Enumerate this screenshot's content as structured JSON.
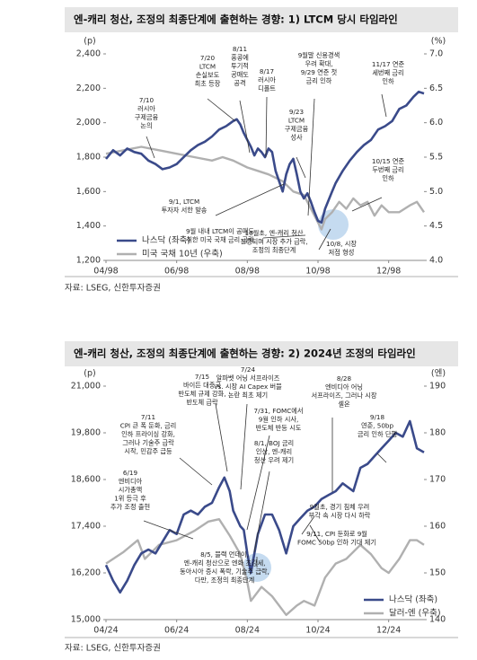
{
  "chart_data": [
    {
      "type": "line",
      "title": "엔-캐리 청산, 조정의 최종단계에 출현하는 경향: 1) LTCM 당시 타임라인",
      "y_unit": "(p)",
      "y2_unit": "(%)",
      "source": "자료: LSEG, 신한투자증권",
      "xlim": [
        0,
        9.0
      ],
      "xticks": [
        {
          "value": 0,
          "label": "04/98"
        },
        {
          "value": 2,
          "label": "06/98"
        },
        {
          "value": 4,
          "label": "08/98"
        },
        {
          "value": 6,
          "label": "10/98"
        },
        {
          "value": 8,
          "label": "12/98"
        }
      ],
      "ylim": [
        1200,
        2400
      ],
      "yticks": [
        {
          "value": 1200,
          "label": "1,200"
        },
        {
          "value": 1400,
          "label": "1,400"
        },
        {
          "value": 1600,
          "label": "1,600"
        },
        {
          "value": 1800,
          "label": "1,800"
        },
        {
          "value": 2000,
          "label": "2,000"
        },
        {
          "value": 2200,
          "label": "2,200"
        },
        {
          "value": 2400,
          "label": "2,400"
        }
      ],
      "y2lim": [
        4.0,
        7.0
      ],
      "y2ticks": [
        {
          "value": 4,
          "label": "4.0"
        },
        {
          "value": 4.5,
          "label": "4.5"
        },
        {
          "value": 5,
          "label": "5.0"
        },
        {
          "value": 5.5,
          "label": "5.5"
        },
        {
          "value": 6,
          "label": "6.0"
        },
        {
          "value": 6.5,
          "label": "6.5"
        },
        {
          "value": 7,
          "label": "7.0"
        }
      ],
      "series": [
        {
          "name": "나스닥 (좌축)",
          "color": "#3a4a8a",
          "x": [
            0,
            0.2,
            0.4,
            0.6,
            0.8,
            1.0,
            1.2,
            1.4,
            1.6,
            1.8,
            2.0,
            2.2,
            2.4,
            2.6,
            2.8,
            3.0,
            3.2,
            3.4,
            3.6,
            3.7,
            3.8,
            3.9,
            4.0,
            4.1,
            4.2,
            4.3,
            4.4,
            4.5,
            4.6,
            4.7,
            4.8,
            4.9,
            5.0,
            5.1,
            5.2,
            5.3,
            5.4,
            5.5,
            5.6,
            5.7,
            5.8,
            5.9,
            6.0,
            6.1,
            6.2,
            6.3,
            6.4,
            6.5,
            6.7,
            6.9,
            7.1,
            7.3,
            7.5,
            7.7,
            7.9,
            8.1,
            8.3,
            8.5,
            8.7,
            8.85,
            9.0
          ],
          "values": [
            1790,
            1840,
            1810,
            1850,
            1830,
            1820,
            1780,
            1760,
            1730,
            1740,
            1760,
            1800,
            1840,
            1870,
            1890,
            1920,
            1960,
            1980,
            2010,
            2020,
            1990,
            1940,
            1900,
            1860,
            1810,
            1850,
            1830,
            1800,
            1850,
            1830,
            1720,
            1660,
            1600,
            1700,
            1760,
            1790,
            1700,
            1600,
            1560,
            1590,
            1540,
            1480,
            1430,
            1420,
            1500,
            1550,
            1600,
            1650,
            1720,
            1780,
            1830,
            1870,
            1900,
            1960,
            1980,
            2010,
            2080,
            2100,
            2150,
            2180,
            2170
          ]
        },
        {
          "name": "미국 국채 10년 (우축)",
          "color": "#b0b0b0",
          "axis": "y2",
          "x": [
            0,
            0.5,
            1,
            1.5,
            2,
            2.5,
            3,
            3.3,
            3.6,
            4.0,
            4.3,
            4.6,
            5.0,
            5.3,
            5.6,
            5.8,
            6.0,
            6.1,
            6.2,
            6.4,
            6.6,
            6.8,
            7.0,
            7.2,
            7.4,
            7.6,
            7.8,
            8.0,
            8.3,
            8.6,
            8.8,
            9.0
          ],
          "values": [
            5.55,
            5.6,
            5.65,
            5.6,
            5.55,
            5.5,
            5.45,
            5.5,
            5.45,
            5.35,
            5.3,
            5.25,
            5.15,
            5.0,
            4.95,
            4.75,
            4.55,
            4.45,
            4.6,
            4.7,
            4.85,
            4.75,
            4.9,
            4.8,
            4.85,
            4.65,
            4.8,
            4.7,
            4.7,
            4.8,
            4.85,
            4.7
          ]
        }
      ],
      "legend": "lower left",
      "annotations": [
        {
          "lines": [
            "7/10",
            "러시아",
            "구제금융",
            "논의"
          ]
        },
        {
          "lines": [
            "7/20",
            "LTCM",
            "손실보도",
            "최초 등장"
          ]
        },
        {
          "lines": [
            "8/11",
            "홍콩에",
            "투기적",
            "공매도",
            "공격"
          ]
        },
        {
          "lines": [
            "8/17",
            "러시아",
            "디폴트"
          ]
        },
        {
          "lines": [
            "9월말 신용경색",
            "우려 확대,",
            "9/29 연준 첫",
            "금리 인하"
          ]
        },
        {
          "lines": [
            "11/17 연준",
            "세번째 금리",
            "인하"
          ]
        },
        {
          "lines": [
            "9/23",
            "LTCM",
            "구제금융",
            "성사"
          ]
        },
        {
          "lines": [
            "10/15 연준",
            "두번째 금리",
            "인하"
          ]
        },
        {
          "lines": [
            "9/1, LTCM",
            "투자자 서한 발송"
          ]
        },
        {
          "lines": [
            "9월 내내 LTCM이 공매도",
            "취한 미국 국채 금리 급락"
          ]
        },
        {
          "lines": [
            "10월초, 엔-캐리 청산",
            "진행되며 시장 추가 급락,",
            "조정의 최종단계"
          ],
          "color": "#e02020"
        },
        {
          "lines": [
            "10/8, 시장",
            "저점 형성"
          ]
        }
      ]
    },
    {
      "type": "line",
      "title": "엔-캐리 청산, 조정의 최종단계에 출현하는 경향: 2) 2024년 조정의 타임라인",
      "y_unit": "(p)",
      "y2_unit": "(엔)",
      "source": "자료: LSEG, 신한투자증권",
      "xlim": [
        0,
        9.0
      ],
      "xticks": [
        {
          "value": 0,
          "label": "04/24"
        },
        {
          "value": 2,
          "label": "06/24"
        },
        {
          "value": 4,
          "label": "08/24"
        },
        {
          "value": 6,
          "label": "10/24"
        },
        {
          "value": 8,
          "label": "12/24"
        }
      ],
      "ylim": [
        15000,
        21000
      ],
      "yticks": [
        {
          "value": 15000,
          "label": "15,000"
        },
        {
          "value": 16200,
          "label": "16,200"
        },
        {
          "value": 17400,
          "label": "17,400"
        },
        {
          "value": 18600,
          "label": "18,600"
        },
        {
          "value": 19800,
          "label": "19,800"
        },
        {
          "value": 21000,
          "label": "21,000"
        }
      ],
      "y2lim": [
        140,
        190
      ],
      "y2ticks": [
        140,
        150,
        160,
        170,
        180,
        190
      ],
      "series": [
        {
          "name": "나스닥 (좌축)",
          "color": "#3a4a8a",
          "x": [
            0,
            0.2,
            0.4,
            0.6,
            0.8,
            1.0,
            1.2,
            1.4,
            1.6,
            1.8,
            2.0,
            2.2,
            2.4,
            2.6,
            2.8,
            3.0,
            3.2,
            3.35,
            3.5,
            3.6,
            3.8,
            3.9,
            4.0,
            4.1,
            4.3,
            4.5,
            4.7,
            4.9,
            5.1,
            5.3,
            5.5,
            5.7,
            5.9,
            6.1,
            6.3,
            6.5,
            6.7,
            7.0,
            7.2,
            7.4,
            7.6,
            7.8,
            8.0,
            8.2,
            8.4,
            8.6,
            8.8,
            9.0
          ],
          "values": [
            16400,
            16000,
            15700,
            16000,
            16400,
            16700,
            16800,
            16700,
            17000,
            17300,
            17200,
            17700,
            17800,
            17700,
            17900,
            18000,
            18400,
            18650,
            18300,
            17800,
            17400,
            17300,
            16700,
            16200,
            17200,
            17700,
            17700,
            17300,
            16700,
            17400,
            17600,
            17800,
            17900,
            18100,
            18200,
            18300,
            18500,
            18300,
            18900,
            19000,
            19200,
            19400,
            19600,
            19800,
            19700,
            20100,
            19400,
            19300
          ]
        },
        {
          "name": "달러-엔 (우축)",
          "color": "#b0b0b0",
          "axis": "y2",
          "x": [
            0,
            0.5,
            0.9,
            1.1,
            1.5,
            2.0,
            2.5,
            2.9,
            3.2,
            3.5,
            3.8,
            4.0,
            4.1,
            4.4,
            4.7,
            5.1,
            5.4,
            5.6,
            5.9,
            6.2,
            6.5,
            6.8,
            7.2,
            7.5,
            7.8,
            8.0,
            8.3,
            8.6,
            8.8,
            9.0
          ],
          "values": [
            152,
            154.5,
            157,
            153,
            156,
            157,
            159,
            161,
            161.5,
            158,
            154,
            148,
            144,
            147,
            145,
            141,
            143,
            144,
            143,
            149,
            152,
            153,
            156,
            154,
            151,
            150,
            153,
            157,
            157,
            156
          ]
        }
      ],
      "legend": "lower right",
      "annotations": [
        {
          "lines": [
            "6/19",
            "엔비디아",
            "시가총액",
            "1위 등극 후",
            "추가 조정 출현"
          ]
        },
        {
          "lines": [
            "7/11",
            "CPI 큰 폭 둔화, 금리",
            "인하 프라이싱 강화,",
            "그러나 기술주 급락",
            "시작, 민감주 급등"
          ]
        },
        {
          "lines": [
            "7/15",
            "바이든 대중국",
            "반도체 규제 강화,",
            "반도체 급락"
          ]
        },
        {
          "lines": [
            "7/24",
            "알파벳 어닝 서프라이즈",
            "vs. 시장 AI Capex 버블",
            "논란 최초 제기"
          ]
        },
        {
          "lines": [
            "7/31, FOMC에서",
            "9월 인하 시사,",
            "반도체 반등 시도"
          ]
        },
        {
          "lines": [
            "8/1, BOJ 금리",
            "인상, 엔-캐리",
            "청산 우려 제기"
          ]
        },
        {
          "lines": [
            "8/28",
            "엔비디아 어닝",
            "서프라이즈, 그러나 시장",
            "셀온"
          ]
        },
        {
          "lines": [
            "9/18",
            "연준, 50bp",
            "금리 인하 단행"
          ]
        },
        {
          "lines": [
            "9월초, 경기 침체 우려",
            "부각 속 시장 다시 하락"
          ]
        },
        {
          "lines": [
            "9/11, CPI 둔화로 9월",
            "FOMC 50bp 인하 기대 제기"
          ]
        },
        {
          "lines": [
            "8/5, 블랙 먼데이,",
            "엔-캐리 청산으로 엔화 초강세,",
            "동아시아 증시 폭락, 기술주 급락,",
            "다만, 조정의 최종단계"
          ],
          "color": "#e02020"
        }
      ]
    }
  ]
}
